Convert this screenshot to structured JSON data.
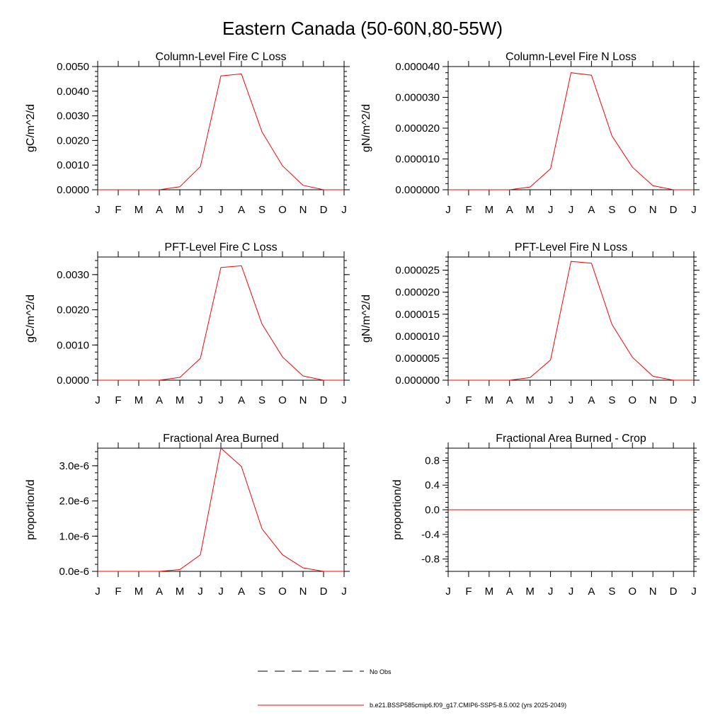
{
  "figure": {
    "title": "Eastern Canada (50-60N,80-55W)"
  },
  "legend": {
    "entries": [
      {
        "label": "No Obs",
        "style": "dashed",
        "color": "#000000"
      },
      {
        "label": "b.e21.BSSP585cmip6.f09_g17.CMIP6-SSP5-8.5.002 (yrs 2025-2049)",
        "style": "solid",
        "color": "#ff0000"
      }
    ]
  },
  "colors": {
    "series": "#ff0000",
    "axes": "#000000"
  },
  "chart_data": [
    {
      "type": "line",
      "title": "Column-Level Fire C Loss",
      "ylabel": "gC/m^2/d",
      "xlabel": "",
      "categories": [
        "J",
        "F",
        "M",
        "A",
        "M",
        "J",
        "J",
        "A",
        "S",
        "O",
        "N",
        "D",
        "J"
      ],
      "ylim": [
        0,
        0.005
      ],
      "yticks": [
        0,
        0.001,
        0.002,
        0.003,
        0.004,
        0.005
      ],
      "ytick_labels": [
        "0.0000",
        "0.0010",
        "0.0020",
        "0.0030",
        "0.0040",
        "0.0050"
      ],
      "grid": false,
      "series": [
        {
          "values": [
            0,
            0,
            0,
            0,
            0.00012,
            0.00094,
            0.00462,
            0.0047,
            0.00235,
            0.00097,
            0.00018,
            0,
            0
          ]
        }
      ]
    },
    {
      "type": "line",
      "title": "Column-Level Fire N Loss",
      "ylabel": "gN/m^2/d",
      "xlabel": "",
      "categories": [
        "J",
        "F",
        "M",
        "A",
        "M",
        "J",
        "J",
        "A",
        "S",
        "O",
        "N",
        "D",
        "J"
      ],
      "ylim": [
        0,
        4e-05
      ],
      "yticks": [
        0,
        1e-05,
        2e-05,
        3e-05,
        4e-05
      ],
      "ytick_labels": [
        "0.000000",
        "0.000010",
        "0.000020",
        "0.000030",
        "0.000040"
      ],
      "grid": false,
      "series": [
        {
          "values": [
            0,
            0,
            0,
            0,
            9e-07,
            6.8e-06,
            3.8e-05,
            3.72e-05,
            1.75e-05,
            7.3e-06,
            1.3e-06,
            0,
            0
          ]
        }
      ]
    },
    {
      "type": "line",
      "title": "PFT-Level Fire C Loss",
      "ylabel": "gC/m^2/d",
      "xlabel": "",
      "categories": [
        "J",
        "F",
        "M",
        "A",
        "M",
        "J",
        "J",
        "A",
        "S",
        "O",
        "N",
        "D",
        "J"
      ],
      "ylim": [
        0,
        0.0035
      ],
      "yticks": [
        0,
        0.001,
        0.002,
        0.003
      ],
      "ytick_labels": [
        "0.0000",
        "0.0010",
        "0.0020",
        "0.0030"
      ],
      "grid": false,
      "series": [
        {
          "values": [
            0,
            0,
            0,
            0,
            8e-05,
            0.00062,
            0.0032,
            0.00325,
            0.0016,
            0.00066,
            0.00012,
            0,
            0
          ]
        }
      ]
    },
    {
      "type": "line",
      "title": "PFT-Level Fire N Loss",
      "ylabel": "gN/m^2/d",
      "xlabel": "",
      "categories": [
        "J",
        "F",
        "M",
        "A",
        "M",
        "J",
        "J",
        "A",
        "S",
        "O",
        "N",
        "D",
        "J"
      ],
      "ylim": [
        0,
        2.8e-05
      ],
      "yticks": [
        0,
        5e-06,
        1e-05,
        1.5e-05,
        2e-05,
        2.5e-05
      ],
      "ytick_labels": [
        "0.000000",
        "0.000005",
        "0.000010",
        "0.000015",
        "0.000020",
        "0.000025"
      ],
      "grid": false,
      "series": [
        {
          "values": [
            0,
            0,
            0,
            0,
            6e-07,
            4.6e-06,
            2.7e-05,
            2.66e-05,
            1.27e-05,
            5.2e-06,
            9e-07,
            0,
            0
          ]
        }
      ]
    },
    {
      "type": "line",
      "title": "Fractional Area Burned",
      "ylabel": "proportion/d",
      "xlabel": "",
      "categories": [
        "J",
        "F",
        "M",
        "A",
        "M",
        "J",
        "J",
        "A",
        "S",
        "O",
        "N",
        "D",
        "J"
      ],
      "ylim": [
        0,
        3.5e-06
      ],
      "yticks": [
        0,
        1e-06,
        2e-06,
        3e-06
      ],
      "ytick_labels": [
        "0.0e-6",
        "1.0e-6",
        "2.0e-6",
        "3.0e-6"
      ],
      "grid": false,
      "series": [
        {
          "values": [
            0,
            0,
            0,
            0,
            5e-08,
            4.7e-07,
            3.5e-06,
            2.98e-06,
            1.21e-06,
            4.7e-07,
            1e-07,
            0,
            0
          ]
        }
      ]
    },
    {
      "type": "line",
      "title": "Fractional Area Burned - Crop",
      "ylabel": "proportion/d",
      "xlabel": "",
      "categories": [
        "J",
        "F",
        "M",
        "A",
        "M",
        "J",
        "J",
        "A",
        "S",
        "O",
        "N",
        "D",
        "J"
      ],
      "ylim": [
        -1,
        1
      ],
      "yticks": [
        -0.8,
        -0.4,
        0,
        0.4,
        0.8
      ],
      "ytick_labels": [
        "-0.8",
        "-0.4",
        "0.0",
        "0.4",
        "0.8"
      ],
      "grid": false,
      "series": [
        {
          "values": [
            0,
            0,
            0,
            0,
            0,
            0,
            0,
            0,
            0,
            0,
            0,
            0,
            0
          ]
        }
      ]
    }
  ]
}
